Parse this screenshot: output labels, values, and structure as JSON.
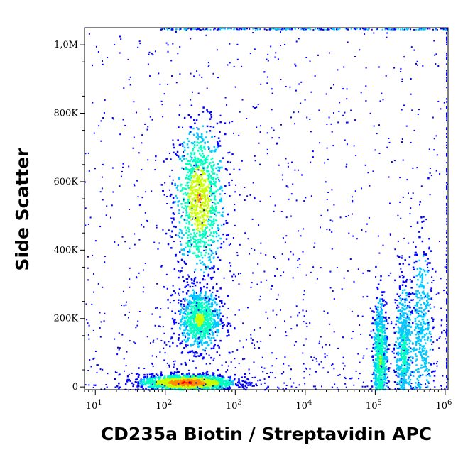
{
  "chart_data": {
    "type": "scatter",
    "plot_style": "density dot plot",
    "xlabel": "CD235a Biotin / Streptavidin APC",
    "ylabel": "Side Scatter",
    "x_scale": "log",
    "xlim": [
      7,
      1100000
    ],
    "ylim": [
      -8000,
      1050000
    ],
    "grid": false,
    "legend": "none",
    "x_ticks": [
      {
        "value": 10,
        "base": "10",
        "exp": "1"
      },
      {
        "value": 100,
        "base": "10",
        "exp": "2"
      },
      {
        "value": 1000,
        "base": "10",
        "exp": "3"
      },
      {
        "value": 10000,
        "base": "10",
        "exp": "4"
      },
      {
        "value": 100000,
        "base": "10",
        "exp": "5"
      },
      {
        "value": 1000000,
        "base": "10",
        "exp": "6"
      }
    ],
    "y_ticks": [
      {
        "value": 0,
        "label": "0"
      },
      {
        "value": 200000,
        "label": "200K"
      },
      {
        "value": 400000,
        "label": "400K"
      },
      {
        "value": 600000,
        "label": "600K"
      },
      {
        "value": 800000,
        "label": "800K"
      },
      {
        "value": 1000000,
        "label": "1,0M"
      }
    ],
    "density_colors": [
      "#0000ff",
      "#00c8ff",
      "#00ffc0",
      "#c8ff00",
      "#ff8c00",
      "#ff0000"
    ],
    "populations": [
      {
        "x_center": 300,
        "y_center": 550000,
        "x_spread_decades": 0.18,
        "y_spread": 110000,
        "relative_density": 0.75
      },
      {
        "x_center": 300,
        "y_center": 200000,
        "x_spread_decades": 0.15,
        "y_spread": 45000,
        "relative_density": 0.6
      },
      {
        "x_center": 200,
        "y_center": 15000,
        "x_spread_decades": 0.35,
        "y_spread": 12000,
        "relative_density": 1.0
      },
      {
        "x_center": 115000,
        "y_center": 80000,
        "x_spread_decades": 0.05,
        "y_spread": 90000,
        "relative_density": 0.55
      },
      {
        "x_center": 250000,
        "y_center": 100000,
        "x_spread_decades": 0.06,
        "y_spread": 100000,
        "relative_density": 0.4
      },
      {
        "x_center": 450000,
        "y_center": 150000,
        "x_spread_decades": 0.08,
        "y_spread": 140000,
        "relative_density": 0.3
      }
    ]
  }
}
